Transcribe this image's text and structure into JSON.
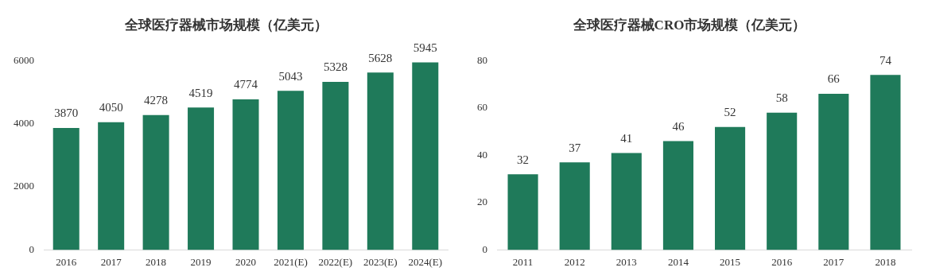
{
  "chart_data": [
    {
      "type": "bar",
      "title": "全球医疗器械市场规模（亿美元）",
      "categories": [
        "2016",
        "2017",
        "2018",
        "2019",
        "2020",
        "2021(E)",
        "2022(E)",
        "2023(E)",
        "2024(E)"
      ],
      "values": [
        3870,
        4050,
        4278,
        4519,
        4774,
        5043,
        5328,
        5628,
        5945
      ],
      "color": "#1f7a5a",
      "ylim": [
        0,
        6000
      ],
      "yticks": [
        0,
        2000,
        4000,
        6000
      ],
      "grid": false,
      "legend": false,
      "data_labels": true
    },
    {
      "type": "bar",
      "title": "全球医疗器械CRO市场规模（亿美元）",
      "categories": [
        "2011",
        "2012",
        "2013",
        "2014",
        "2015",
        "2016",
        "2017",
        "2018"
      ],
      "values": [
        32,
        37,
        41,
        46,
        52,
        58,
        66,
        74
      ],
      "color": "#1f7a5a",
      "ylim": [
        0,
        80
      ],
      "yticks": [
        0,
        20,
        40,
        60,
        80
      ],
      "grid": false,
      "legend": false,
      "data_labels": true
    }
  ]
}
